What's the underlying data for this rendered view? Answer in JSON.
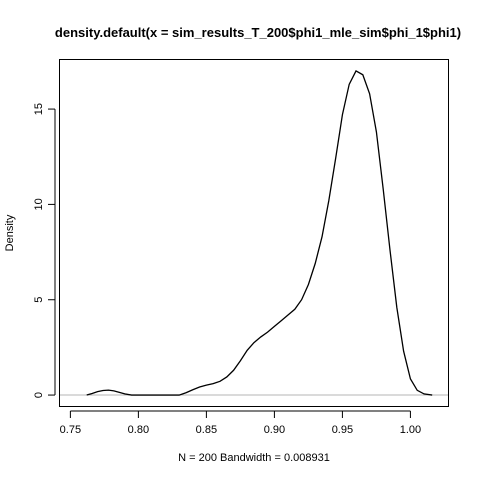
{
  "chart_data": {
    "type": "line",
    "title": "density.default(x = sim_results_T_200$phi1_mle_sim$phi_1$phi1)",
    "xlabel": "N = 200   Bandwidth = 0.008931",
    "ylabel": "Density",
    "xlim": [
      0.742,
      1.028
    ],
    "ylim": [
      -0.6,
      17.6
    ],
    "x_ticks": [
      0.75,
      0.8,
      0.85,
      0.9,
      0.95,
      1.0
    ],
    "x_tick_labels": [
      "0.75",
      "0.80",
      "0.85",
      "0.90",
      "0.95",
      "1.00"
    ],
    "y_ticks": [
      0,
      5,
      10,
      15
    ],
    "y_tick_labels": [
      "0",
      "5",
      "10",
      "15"
    ],
    "grid": false,
    "zero_line": true,
    "series": [
      {
        "x": [
          0.762,
          0.766,
          0.77,
          0.774,
          0.778,
          0.782,
          0.786,
          0.79,
          0.795,
          0.8,
          0.81,
          0.82,
          0.83,
          0.835,
          0.84,
          0.845,
          0.85,
          0.855,
          0.86,
          0.865,
          0.87,
          0.875,
          0.88,
          0.885,
          0.89,
          0.895,
          0.9,
          0.905,
          0.91,
          0.915,
          0.92,
          0.925,
          0.93,
          0.935,
          0.94,
          0.945,
          0.95,
          0.955,
          0.96,
          0.965,
          0.97,
          0.975,
          0.98,
          0.985,
          0.99,
          0.995,
          1.0,
          1.005,
          1.01,
          1.016
        ],
        "y": [
          0.0,
          0.08,
          0.18,
          0.24,
          0.26,
          0.22,
          0.14,
          0.06,
          0.0,
          0.0,
          0.0,
          0.0,
          0.0,
          0.12,
          0.28,
          0.42,
          0.52,
          0.6,
          0.72,
          0.95,
          1.3,
          1.8,
          2.35,
          2.75,
          3.05,
          3.3,
          3.6,
          3.9,
          4.2,
          4.5,
          5.0,
          5.8,
          6.9,
          8.3,
          10.2,
          12.4,
          14.7,
          16.3,
          17.0,
          16.8,
          15.8,
          13.8,
          10.8,
          7.6,
          4.6,
          2.3,
          0.85,
          0.25,
          0.06,
          0.0
        ]
      }
    ]
  }
}
